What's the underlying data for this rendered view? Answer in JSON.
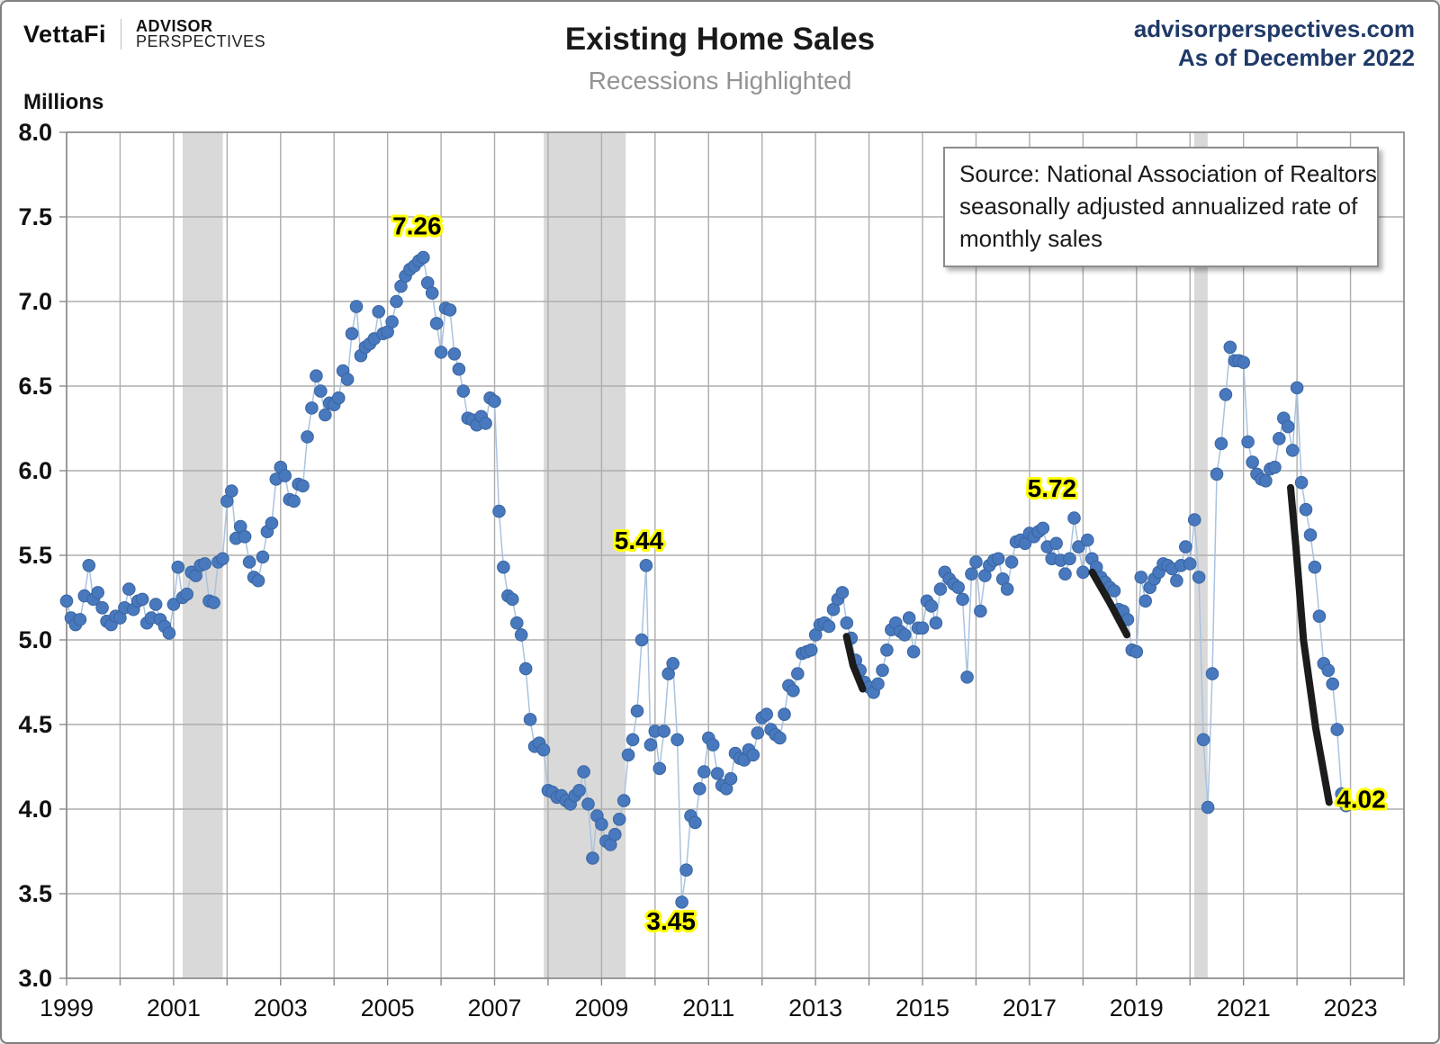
{
  "header": {
    "brand": {
      "vettafi": "VettaFi",
      "advisor": "ADVISOR",
      "perspectives": "PERSPECTIVES"
    },
    "title": "Existing Home Sales",
    "subtitle": "Recessions Highlighted",
    "site": "advisorperspectives.com",
    "as_of": "As of December 2022",
    "unit_label": "Millions"
  },
  "source_note": {
    "lines": [
      "Source: National Association of Realtors",
      "seasonally adjusted annualized rate of",
      "monthly sales"
    ]
  },
  "chart_data": {
    "type": "scatter",
    "title": "Existing Home Sales",
    "subtitle": "Recessions Highlighted",
    "ylabel": "Millions",
    "ylim": [
      3.0,
      8.0
    ],
    "ytick_step": 0.5,
    "xlim": [
      1999,
      2024
    ],
    "xtick_labels": [
      "1999",
      "2001",
      "2003",
      "2005",
      "2007",
      "2009",
      "2011",
      "2013",
      "2015",
      "2017",
      "2019",
      "2021",
      "2023"
    ],
    "xtick_years": [
      1999,
      2001,
      2003,
      2005,
      2007,
      2009,
      2011,
      2013,
      2015,
      2017,
      2019,
      2021,
      2023
    ],
    "grid": true,
    "legend": "none",
    "frequency": "monthly",
    "start_year": 1999,
    "series": [
      {
        "name": "Existing Home Sales (millions, SAAR)",
        "values": [
          5.23,
          5.13,
          5.09,
          5.12,
          5.26,
          5.44,
          5.24,
          5.28,
          5.19,
          5.11,
          5.09,
          5.14,
          5.13,
          5.19,
          5.3,
          5.18,
          5.23,
          5.24,
          5.1,
          5.13,
          5.21,
          5.12,
          5.08,
          5.04,
          5.21,
          5.43,
          5.25,
          5.27,
          5.4,
          5.38,
          5.44,
          5.45,
          5.23,
          5.22,
          5.46,
          5.48,
          5.82,
          5.88,
          5.6,
          5.67,
          5.61,
          5.46,
          5.37,
          5.35,
          5.49,
          5.64,
          5.69,
          5.95,
          6.02,
          5.97,
          5.83,
          5.82,
          5.92,
          5.91,
          6.2,
          6.37,
          6.56,
          6.47,
          6.33,
          6.4,
          6.39,
          6.43,
          6.59,
          6.54,
          6.81,
          6.97,
          6.68,
          6.73,
          6.75,
          6.78,
          6.94,
          6.81,
          6.82,
          6.88,
          7.0,
          7.09,
          7.15,
          7.19,
          7.21,
          7.24,
          7.26,
          7.11,
          7.05,
          6.87,
          6.7,
          6.96,
          6.95,
          6.69,
          6.6,
          6.47,
          6.31,
          6.3,
          6.27,
          6.32,
          6.28,
          6.43,
          6.41,
          5.76,
          5.43,
          5.26,
          5.24,
          5.1,
          5.03,
          4.83,
          4.53,
          4.37,
          4.39,
          4.35,
          4.11,
          4.1,
          4.07,
          4.08,
          4.05,
          4.03,
          4.08,
          4.11,
          4.22,
          4.03,
          3.71,
          3.96,
          3.91,
          3.81,
          3.79,
          3.85,
          3.94,
          4.05,
          4.32,
          4.41,
          4.58,
          5.0,
          5.44,
          4.38,
          4.46,
          4.24,
          4.46,
          4.8,
          4.86,
          4.41,
          3.45,
          3.64,
          3.96,
          3.92,
          4.12,
          4.22,
          4.42,
          4.38,
          4.21,
          4.14,
          4.12,
          4.18,
          4.33,
          4.3,
          4.29,
          4.35,
          4.32,
          4.45,
          4.54,
          4.56,
          4.47,
          4.44,
          4.42,
          4.56,
          4.73,
          4.7,
          4.8,
          4.92,
          4.93,
          4.94,
          5.03,
          5.09,
          5.1,
          5.08,
          5.18,
          5.24,
          5.28,
          5.1,
          5.01,
          4.88,
          4.82,
          4.75,
          4.72,
          4.69,
          4.74,
          4.82,
          4.94,
          5.06,
          5.1,
          5.05,
          5.03,
          5.13,
          4.93,
          5.07,
          5.07,
          5.23,
          5.2,
          5.1,
          5.3,
          5.4,
          5.36,
          5.33,
          5.31,
          5.24,
          4.78,
          5.39,
          5.46,
          5.17,
          5.38,
          5.44,
          5.47,
          5.48,
          5.36,
          5.3,
          5.46,
          5.58,
          5.59,
          5.57,
          5.63,
          5.61,
          5.64,
          5.66,
          5.55,
          5.48,
          5.57,
          5.47,
          5.39,
          5.48,
          5.72,
          5.55,
          5.4,
          5.59,
          5.48,
          5.43,
          5.37,
          5.34,
          5.31,
          5.29,
          5.18,
          5.17,
          5.12,
          4.94,
          4.93,
          5.37,
          5.23,
          5.31,
          5.36,
          5.4,
          5.45,
          5.44,
          5.42,
          5.35,
          5.44,
          5.55,
          5.45,
          5.71,
          5.37,
          4.41,
          4.01,
          4.8,
          5.98,
          6.16,
          6.45,
          6.73,
          6.65,
          6.65,
          6.64,
          6.17,
          6.05,
          5.98,
          5.95,
          5.94,
          6.01,
          6.02,
          6.19,
          6.31,
          6.26,
          6.12,
          6.49,
          5.93,
          5.77,
          5.62,
          5.43,
          5.14,
          4.86,
          4.82,
          4.74,
          4.47,
          4.09,
          4.02
        ]
      }
    ],
    "recessions": [
      [
        2001.17,
        2001.92
      ],
      [
        2007.92,
        2009.45
      ],
      [
        2020.08,
        2020.33
      ]
    ],
    "trend_segments": [
      [
        [
          2013.58,
          5.02
        ],
        [
          2013.7,
          4.85
        ],
        [
          2013.88,
          4.71
        ]
      ],
      [
        [
          2018.17,
          5.4
        ],
        [
          2018.5,
          5.22
        ],
        [
          2018.82,
          5.03
        ]
      ],
      [
        [
          2021.88,
          5.9
        ],
        [
          2021.98,
          5.55
        ],
        [
          2022.12,
          5.0
        ],
        [
          2022.35,
          4.48
        ],
        [
          2022.6,
          4.04
        ]
      ]
    ],
    "annotations": [
      {
        "text": "7.26",
        "x": 2005.55,
        "y": 7.45
      },
      {
        "text": "5.44",
        "x": 2009.7,
        "y": 5.59
      },
      {
        "text": "3.45",
        "x": 2010.3,
        "y": 3.34
      },
      {
        "text": "5.72",
        "x": 2017.42,
        "y": 5.9
      },
      {
        "text": "4.02",
        "x": 2023.2,
        "y": 4.06
      }
    ],
    "colors": {
      "dot": "#4878be",
      "dot_edge": "#3a659f",
      "connector": "#a9c3df",
      "grid": "#adadad",
      "axis": "#8a8a8a",
      "recession_band": "#d9d9d9",
      "trend": "#1c1c1c",
      "annotation_glow": "#ffff00",
      "site_text": "#1f3a68"
    }
  }
}
